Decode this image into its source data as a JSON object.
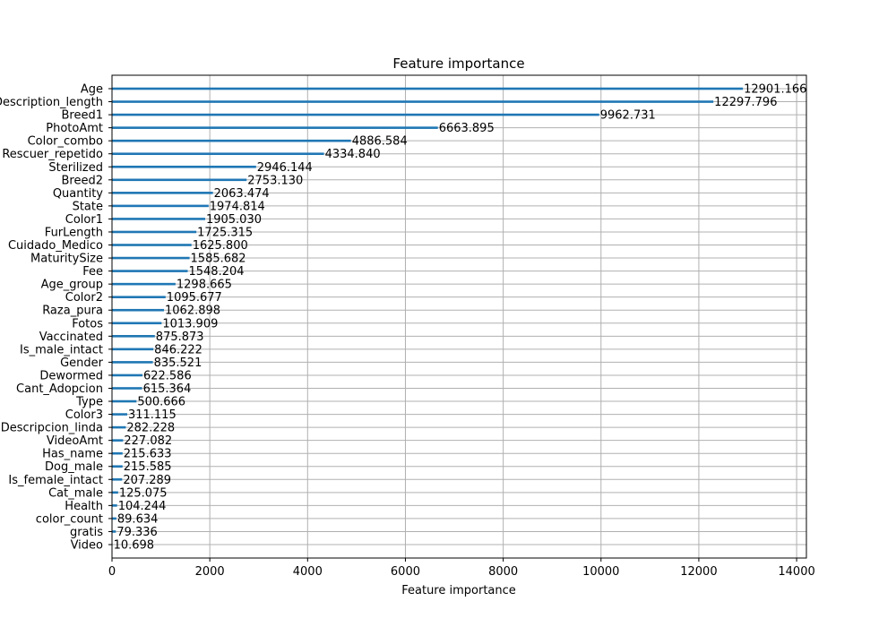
{
  "chart_data": {
    "type": "bar",
    "orientation": "horizontal",
    "title": "Feature importance",
    "xlabel": "Feature importance",
    "ylabel": "",
    "xlim": [
      0,
      14200
    ],
    "xticks": [
      0,
      2000,
      4000,
      6000,
      8000,
      10000,
      12000,
      14000
    ],
    "grid": true,
    "categories": [
      "Age",
      "Description_length",
      "Breed1",
      "PhotoAmt",
      "Color_combo",
      "Rescuer_repetido",
      "Sterilized",
      "Breed2",
      "Quantity",
      "State",
      "Color1",
      "FurLength",
      "Cuidado_Medico",
      "MaturitySize",
      "Fee",
      "Age_group",
      "Color2",
      "Raza_pura",
      "Fotos",
      "Vaccinated",
      "Is_male_intact",
      "Gender",
      "Dewormed",
      "Cant_Adopcion",
      "Type",
      "Color3",
      "Descripcion_linda",
      "VideoAmt",
      "Has_name",
      "Dog_male",
      "Is_female_intact",
      "Cat_male",
      "Health",
      "color_count",
      "gratis",
      "Video"
    ],
    "values": [
      12901.166,
      12297.796,
      9962.731,
      6663.895,
      4886.584,
      4334.84,
      2946.144,
      2753.13,
      2063.474,
      1974.814,
      1905.03,
      1725.315,
      1625.8,
      1585.682,
      1548.204,
      1298.665,
      1095.677,
      1062.898,
      1013.909,
      875.873,
      846.222,
      835.521,
      622.586,
      615.364,
      500.666,
      311.115,
      282.228,
      227.082,
      215.633,
      215.585,
      207.289,
      125.075,
      104.244,
      89.634,
      79.336,
      10.698
    ],
    "value_labels": [
      "12901.166",
      "12297.796",
      "9962.731",
      "6663.895",
      "4886.584",
      "4334.840",
      "2946.144",
      "2753.130",
      "2063.474",
      "1974.814",
      "1905.030",
      "1725.315",
      "1625.800",
      "1585.682",
      "1548.204",
      "1298.665",
      "1095.677",
      "1062.898",
      "1013.909",
      "875.873",
      "846.222",
      "835.521",
      "622.586",
      "615.364",
      "500.666",
      "311.115",
      "282.228",
      "227.082",
      "215.633",
      "215.585",
      "207.289",
      "125.075",
      "104.244",
      "89.634",
      "79.336",
      "10.698"
    ],
    "bar_color": "#1f77b4",
    "grid_color": "#b0b0b0"
  }
}
